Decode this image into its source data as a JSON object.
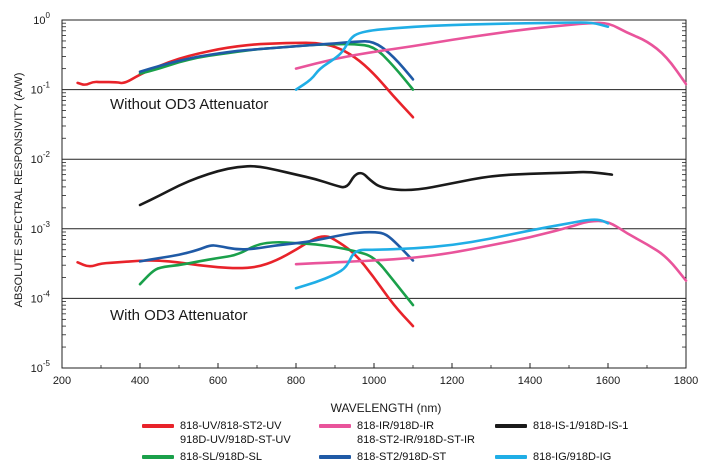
{
  "chart_data": {
    "type": "line",
    "ylabel": "ABSOLUTE SPECTRAL RESPONSIVITY (A/W)",
    "xlabel": "WAVELENGTH (nm)",
    "xlim": [
      200,
      1800
    ],
    "ylim_exp": [
      -5,
      0
    ],
    "y_scale": "log",
    "grid": "horizontal decade lines",
    "x_ticks": [
      "200",
      "400",
      "600",
      "800",
      "1000",
      "1200",
      "1400",
      "1600",
      "1800"
    ],
    "y_ticks": [
      {
        "base": "10",
        "exp": "-5"
      },
      {
        "base": "10",
        "exp": "-4"
      },
      {
        "base": "10",
        "exp": "-3"
      },
      {
        "base": "10",
        "exp": "-2"
      },
      {
        "base": "10",
        "exp": "-1"
      },
      {
        "base": "10",
        "exp": "0"
      }
    ],
    "annotations": {
      "without": "Without OD3 Attenuator",
      "with": "With OD3 Attenuator"
    },
    "legend": [
      {
        "label": "818-UV/818-ST2-UV\n918D-UV/918D-ST-UV",
        "color": "#e8232a"
      },
      {
        "label": "818-IR/918D-IR\n818-ST2-IR/918D-ST-IR",
        "color": "#e9549b"
      },
      {
        "label": "818-IS-1/918D-IS-1",
        "color": "#1a1a1a"
      },
      {
        "label": "818-SL/918D-SL",
        "color": "#1aa04a"
      },
      {
        "label": "818-ST2/918D-ST",
        "color": "#1f5aa6"
      },
      {
        "label": "818-IG/918D-IG",
        "color": "#20aee6"
      }
    ],
    "series": [
      {
        "color": "#e8232a",
        "values": [
          [
            240,
            0.125
          ],
          [
            260,
            0.115
          ],
          [
            280,
            0.13
          ],
          [
            300,
            0.128
          ],
          [
            340,
            0.128
          ],
          [
            360,
            0.122
          ],
          [
            400,
            0.165
          ],
          [
            450,
            0.22
          ],
          [
            500,
            0.28
          ],
          [
            550,
            0.33
          ],
          [
            600,
            0.38
          ],
          [
            650,
            0.42
          ],
          [
            700,
            0.45
          ],
          [
            750,
            0.46
          ],
          [
            800,
            0.47
          ],
          [
            850,
            0.47
          ],
          [
            900,
            0.42
          ],
          [
            950,
            0.3
          ],
          [
            1000,
            0.17
          ],
          [
            1050,
            0.08
          ],
          [
            1100,
            0.04
          ]
        ]
      },
      {
        "color": "#1aa04a",
        "values": [
          [
            400,
            0.17
          ],
          [
            450,
            0.2
          ],
          [
            500,
            0.25
          ],
          [
            550,
            0.29
          ],
          [
            600,
            0.32
          ],
          [
            650,
            0.35
          ],
          [
            700,
            0.38
          ],
          [
            750,
            0.4
          ],
          [
            800,
            0.42
          ],
          [
            850,
            0.44
          ],
          [
            900,
            0.45
          ],
          [
            950,
            0.45
          ],
          [
            1000,
            0.42
          ],
          [
            1050,
            0.22
          ],
          [
            1100,
            0.1
          ]
        ]
      },
      {
        "color": "#1f5aa6",
        "values": [
          [
            400,
            0.18
          ],
          [
            450,
            0.22
          ],
          [
            500,
            0.26
          ],
          [
            550,
            0.3
          ],
          [
            600,
            0.33
          ],
          [
            650,
            0.36
          ],
          [
            700,
            0.38
          ],
          [
            750,
            0.4
          ],
          [
            800,
            0.42
          ],
          [
            850,
            0.44
          ],
          [
            900,
            0.46
          ],
          [
            950,
            0.49
          ],
          [
            1000,
            0.5
          ],
          [
            1050,
            0.3
          ],
          [
            1100,
            0.14
          ]
        ]
      },
      {
        "color": "#e9549b",
        "values": [
          [
            800,
            0.2
          ],
          [
            900,
            0.28
          ],
          [
            1000,
            0.35
          ],
          [
            1100,
            0.42
          ],
          [
            1200,
            0.52
          ],
          [
            1300,
            0.63
          ],
          [
            1400,
            0.75
          ],
          [
            1500,
            0.85
          ],
          [
            1550,
            0.9
          ],
          [
            1600,
            0.92
          ],
          [
            1650,
            0.65
          ],
          [
            1700,
            0.5
          ],
          [
            1750,
            0.3
          ],
          [
            1800,
            0.12
          ]
        ]
      },
      {
        "color": "#20aee6",
        "values": [
          [
            800,
            0.1
          ],
          [
            840,
            0.14
          ],
          [
            860,
            0.2
          ],
          [
            900,
            0.28
          ],
          [
            920,
            0.35
          ],
          [
            940,
            0.55
          ],
          [
            960,
            0.65
          ],
          [
            1000,
            0.72
          ],
          [
            1100,
            0.8
          ],
          [
            1200,
            0.85
          ],
          [
            1300,
            0.88
          ],
          [
            1400,
            0.9
          ],
          [
            1500,
            0.92
          ],
          [
            1560,
            0.92
          ],
          [
            1600,
            0.8
          ]
        ]
      },
      {
        "color": "#1a1a1a",
        "values": [
          [
            400,
            0.0022
          ],
          [
            450,
            0.003
          ],
          [
            500,
            0.0042
          ],
          [
            550,
            0.0055
          ],
          [
            600,
            0.0068
          ],
          [
            650,
            0.0078
          ],
          [
            700,
            0.008
          ],
          [
            750,
            0.007
          ],
          [
            800,
            0.006
          ],
          [
            850,
            0.0052
          ],
          [
            900,
            0.0042
          ],
          [
            930,
            0.0038
          ],
          [
            950,
            0.006
          ],
          [
            970,
            0.0065
          ],
          [
            990,
            0.005
          ],
          [
            1020,
            0.0038
          ],
          [
            1100,
            0.0035
          ],
          [
            1200,
            0.0045
          ],
          [
            1300,
            0.0058
          ],
          [
            1400,
            0.0062
          ],
          [
            1500,
            0.0064
          ],
          [
            1550,
            0.0066
          ],
          [
            1610,
            0.006
          ]
        ]
      },
      {
        "color": "#e8232a",
        "values": [
          [
            240,
            0.00033
          ],
          [
            270,
            0.00028
          ],
          [
            300,
            0.00032
          ],
          [
            350,
            0.00033
          ],
          [
            400,
            0.00035
          ],
          [
            450,
            0.00035
          ],
          [
            500,
            0.00033
          ],
          [
            550,
            0.0003
          ],
          [
            600,
            0.00028
          ],
          [
            650,
            0.00027
          ],
          [
            700,
            0.00028
          ],
          [
            750,
            0.00035
          ],
          [
            800,
            0.0005
          ],
          [
            850,
            0.00075
          ],
          [
            880,
            0.00079
          ],
          [
            900,
            0.0007
          ],
          [
            950,
            0.00045
          ],
          [
            1000,
            0.0002
          ],
          [
            1050,
            8e-05
          ],
          [
            1100,
            4e-05
          ]
        ]
      },
      {
        "color": "#1aa04a",
        "values": [
          [
            400,
            0.00016
          ],
          [
            430,
            0.00024
          ],
          [
            450,
            0.00028
          ],
          [
            500,
            0.0003
          ],
          [
            550,
            0.00034
          ],
          [
            600,
            0.00038
          ],
          [
            650,
            0.00042
          ],
          [
            700,
            0.0006
          ],
          [
            750,
            0.00065
          ],
          [
            800,
            0.00062
          ],
          [
            850,
            0.0006
          ],
          [
            900,
            0.00055
          ],
          [
            950,
            0.00048
          ],
          [
            1000,
            0.0004
          ],
          [
            1050,
            0.00018
          ],
          [
            1100,
            8e-05
          ]
        ]
      },
      {
        "color": "#1f5aa6",
        "values": [
          [
            400,
            0.00034
          ],
          [
            450,
            0.00038
          ],
          [
            500,
            0.00042
          ],
          [
            550,
            0.0005
          ],
          [
            580,
            0.00058
          ],
          [
            600,
            0.00057
          ],
          [
            650,
            0.0005
          ],
          [
            700,
            0.00052
          ],
          [
            750,
            0.00058
          ],
          [
            800,
            0.00062
          ],
          [
            850,
            0.00068
          ],
          [
            900,
            0.00078
          ],
          [
            950,
            0.00088
          ],
          [
            1000,
            0.0009
          ],
          [
            1030,
            0.00085
          ],
          [
            1060,
            0.0006
          ],
          [
            1100,
            0.00035
          ]
        ]
      },
      {
        "color": "#e9549b",
        "values": [
          [
            800,
            0.00031
          ],
          [
            850,
            0.00032
          ],
          [
            900,
            0.00033
          ],
          [
            950,
            0.00034
          ],
          [
            1000,
            0.00035
          ],
          [
            1100,
            0.00038
          ],
          [
            1200,
            0.00045
          ],
          [
            1300,
            0.00058
          ],
          [
            1400,
            0.00075
          ],
          [
            1500,
            0.00105
          ],
          [
            1550,
            0.0013
          ],
          [
            1600,
            0.0013
          ],
          [
            1650,
            0.00085
          ],
          [
            1700,
            0.0006
          ],
          [
            1750,
            0.0004
          ],
          [
            1800,
            0.00018
          ]
        ]
      },
      {
        "color": "#20aee6",
        "values": [
          [
            800,
            0.00014
          ],
          [
            850,
            0.00017
          ],
          [
            900,
            0.00022
          ],
          [
            930,
            0.00028
          ],
          [
            950,
            0.0005
          ],
          [
            1000,
            0.0005
          ],
          [
            1100,
            0.00052
          ],
          [
            1200,
            0.00058
          ],
          [
            1300,
            0.00072
          ],
          [
            1400,
            0.00095
          ],
          [
            1500,
            0.0012
          ],
          [
            1550,
            0.00135
          ],
          [
            1580,
            0.00135
          ],
          [
            1600,
            0.0012
          ]
        ]
      }
    ]
  }
}
